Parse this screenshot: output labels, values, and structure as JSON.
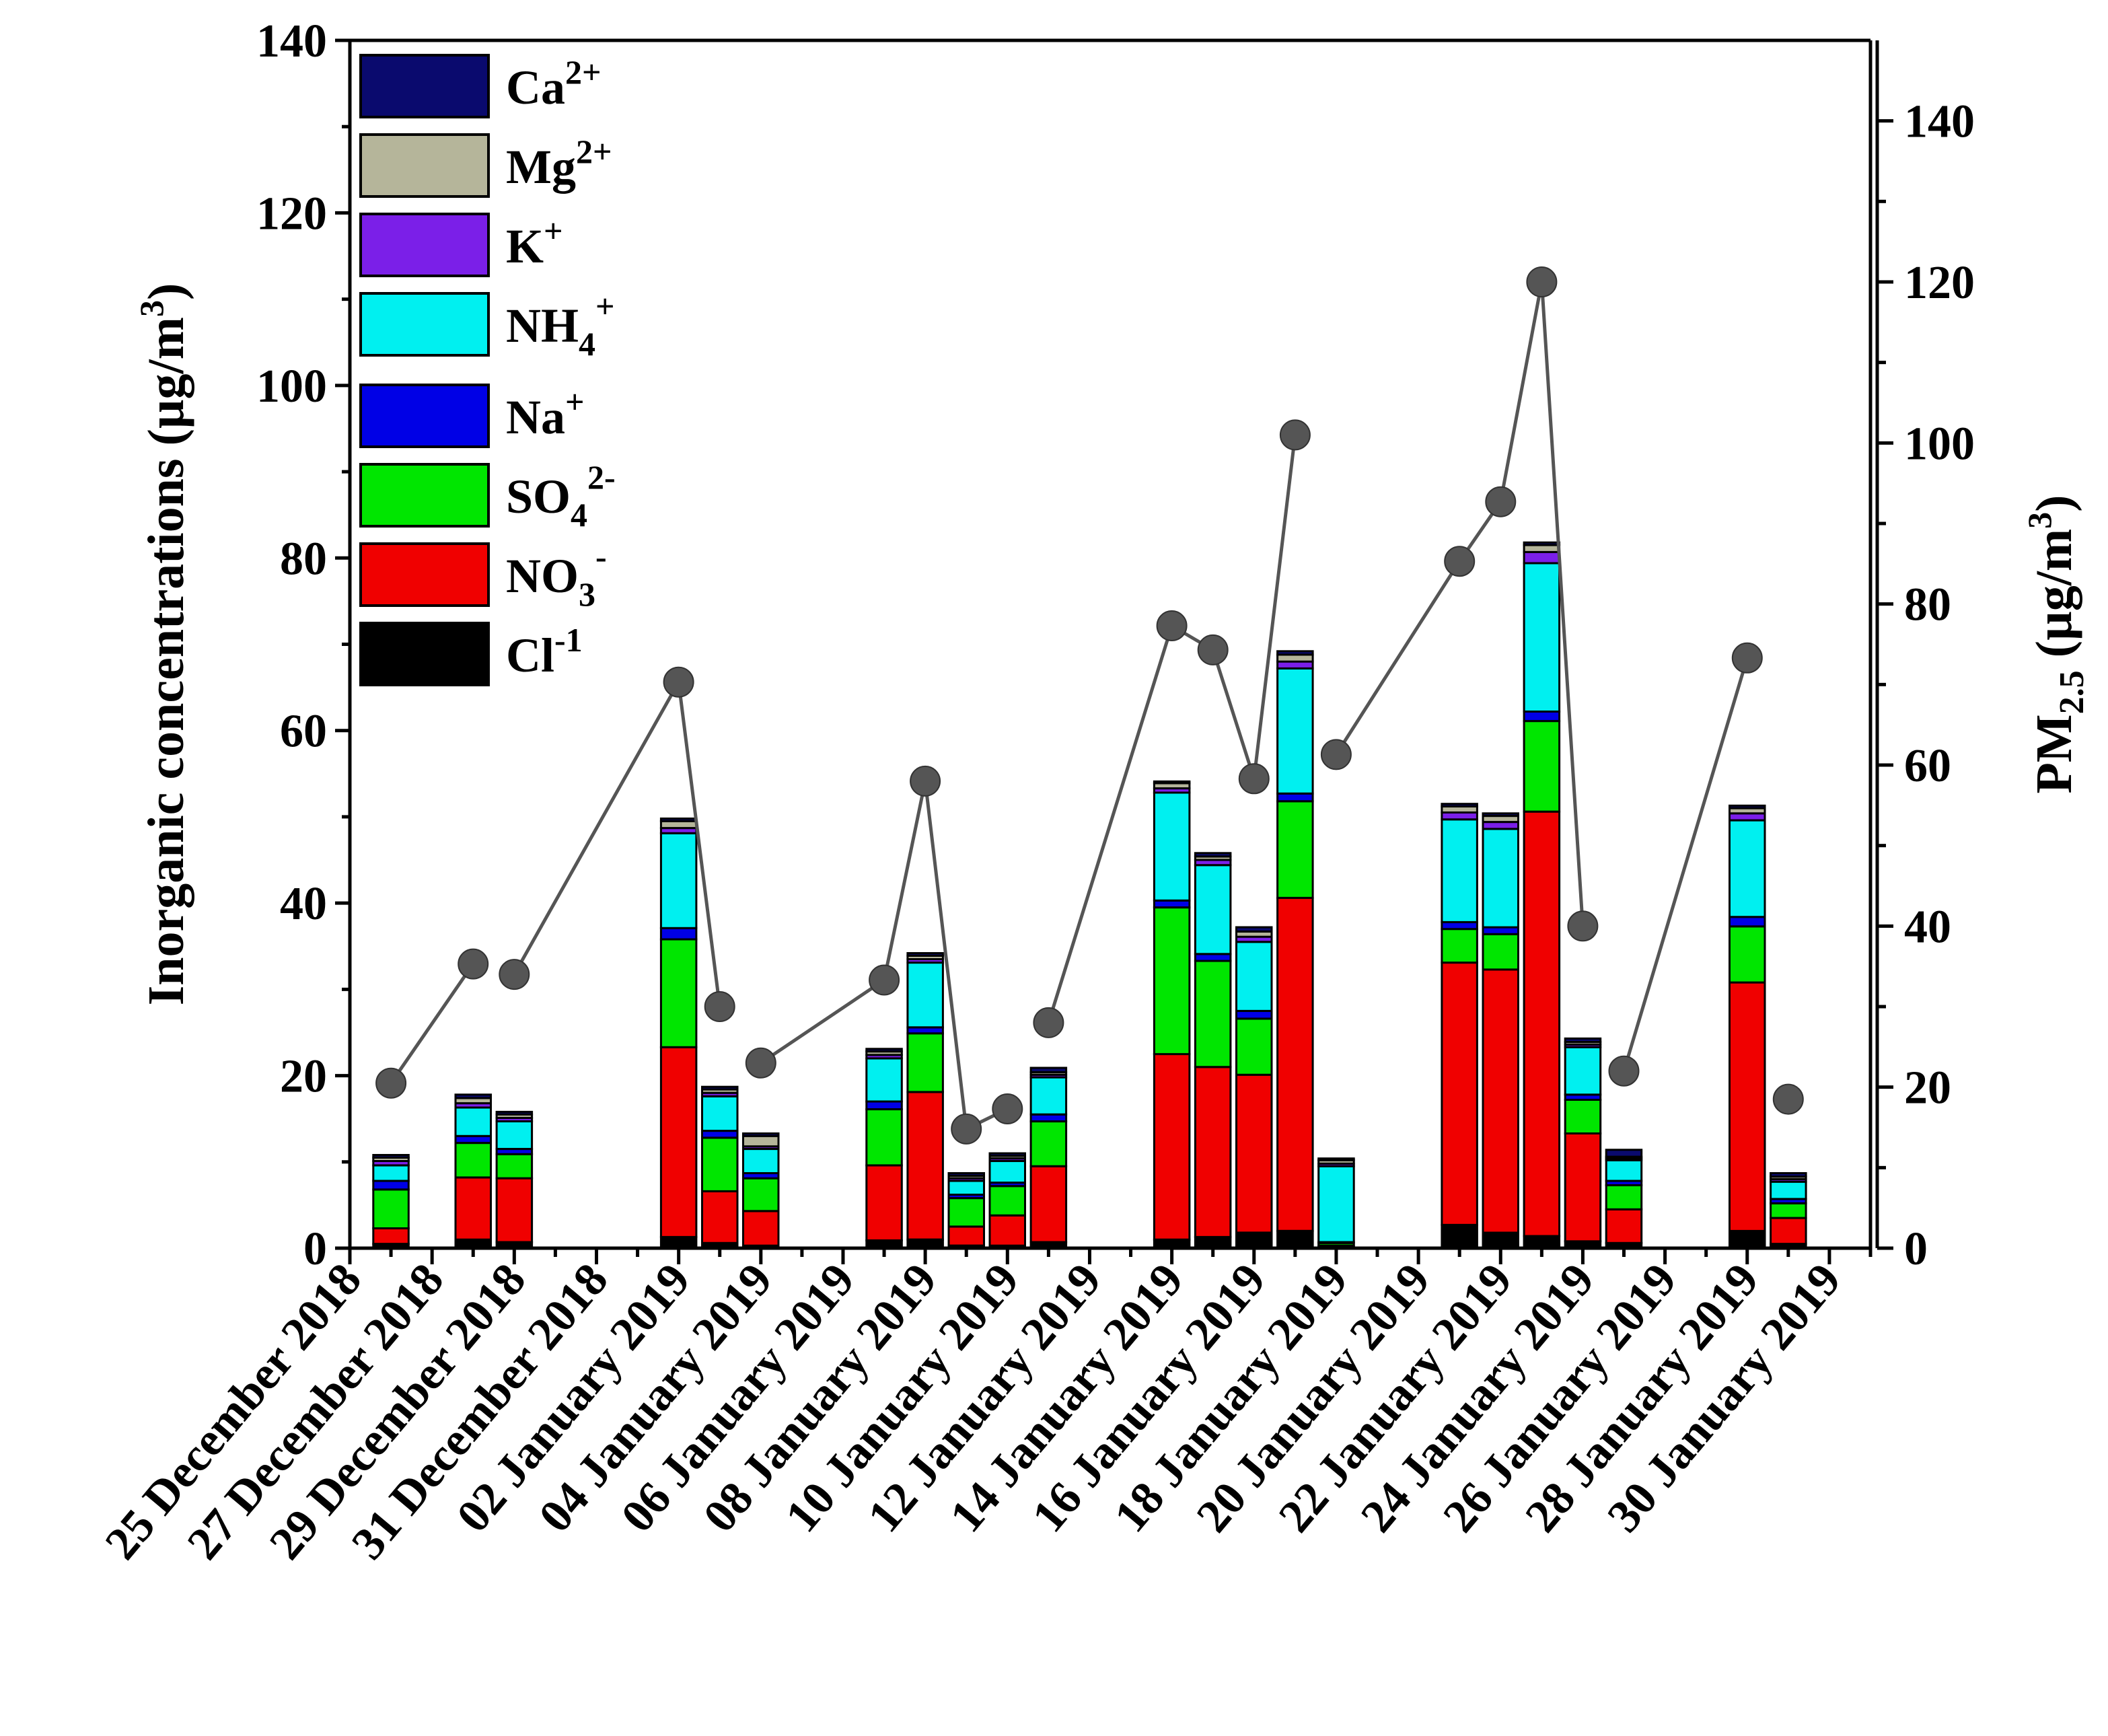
{
  "chart_data": {
    "type": "bar",
    "stacked": true,
    "left_axis": {
      "title": "Inorganic concentrations (µg/m",
      "title_sup": "3",
      "title_end": ")",
      "ylim": [
        0,
        140
      ],
      "ticks": [
        "0",
        "20",
        "40",
        "60",
        "80",
        "100",
        "120",
        "140"
      ]
    },
    "right_axis": {
      "title_main": "PM",
      "title_sub": "2.5",
      "title_unit": " (µg/m",
      "title_sup": "3",
      "title_end": ")",
      "ylim": [
        0,
        150
      ],
      "ticks": [
        "0",
        "20",
        "40",
        "60",
        "80",
        "100",
        "120",
        "140"
      ]
    },
    "x_axis": {
      "start_day": 0,
      "end_day": 37,
      "date_labels": [
        "25 December 2018",
        "27 December 2018",
        "29 December 2018",
        "31 December 2018",
        "02 January 2019",
        "04 January 2019",
        "06 January 2019",
        "08 January 2019",
        "10 January 2019",
        "12 January 2019",
        "14 January 2019",
        "16 January 2019",
        "18 January 2019",
        "20 January 2019",
        "22 January 2019",
        "24 January 2019",
        "26 January 2019",
        "28 January 2019",
        "30 January 2019"
      ]
    },
    "legend": [
      {
        "label": "Ca",
        "sup": "2+",
        "sub": "",
        "color": "#0a0a6e"
      },
      {
        "label": "Mg",
        "sup": "2+",
        "sub": "",
        "color": "#b5b59a"
      },
      {
        "label": "K",
        "sup": "+",
        "sub": "",
        "color": "#7b1fe8"
      },
      {
        "label": "NH",
        "sup": "+",
        "sub": "4",
        "color": "#00f0f0"
      },
      {
        "label": "Na",
        "sup": "+",
        "sub": "",
        "color": "#0000e6"
      },
      {
        "label": "SO",
        "sup": "2-",
        "sub": "4",
        "color": "#00e600"
      },
      {
        "label": "NO",
        "sup": "-",
        "sub": "3",
        "color": "#f00000"
      },
      {
        "label": "Cl",
        "sup": "-1",
        "sub": "",
        "color": "#000000"
      }
    ],
    "series_order": [
      "Cl-1",
      "NO3-",
      "SO42-",
      "Na+",
      "NH4+",
      "K+",
      "Mg2+",
      "Ca2+"
    ],
    "series_colors": [
      "#000000",
      "#f00000",
      "#00e600",
      "#0000e6",
      "#00f0f0",
      "#7b1fe8",
      "#b5b59a",
      "#0a0a6e"
    ],
    "samples": [
      {
        "day": 1,
        "values": [
          0.5,
          1.8,
          4.5,
          1.0,
          1.8,
          0.5,
          0.4,
          0.3
        ],
        "pm25": 20.5
      },
      {
        "day": 3,
        "values": [
          1.0,
          7.2,
          4.0,
          0.8,
          3.3,
          0.5,
          0.6,
          0.4
        ],
        "pm25": 35.3
      },
      {
        "day": 4,
        "values": [
          0.7,
          7.4,
          2.8,
          0.6,
          3.2,
          0.4,
          0.4,
          0.3
        ],
        "pm25": 34.0
      },
      {
        "day": 8,
        "values": [
          1.3,
          22.0,
          12.5,
          1.3,
          11.0,
          0.6,
          0.8,
          0.3
        ],
        "pm25": 70.3
      },
      {
        "day": 9,
        "values": [
          0.6,
          6.0,
          6.2,
          0.8,
          4.0,
          0.4,
          0.4,
          0.3
        ],
        "pm25": 30.0
      },
      {
        "day": 10,
        "values": [
          0.3,
          4.0,
          3.8,
          0.6,
          2.8,
          0.3,
          1.2,
          0.3
        ],
        "pm25": 23.0
      },
      {
        "day": 13,
        "values": [
          0.9,
          8.7,
          6.5,
          0.9,
          5.0,
          0.4,
          0.4,
          0.3
        ],
        "pm25": 33.3
      },
      {
        "day": 14,
        "values": [
          1.0,
          17.1,
          6.8,
          0.7,
          7.5,
          0.4,
          0.4,
          0.3
        ],
        "pm25": 58.0
      },
      {
        "day": 15,
        "values": [
          0.3,
          2.2,
          3.3,
          0.4,
          1.6,
          0.3,
          0.3,
          0.3
        ],
        "pm25": 14.8
      },
      {
        "day": 16,
        "values": [
          0.3,
          3.5,
          3.4,
          0.4,
          2.5,
          0.3,
          0.3,
          0.3
        ],
        "pm25": 17.3
      },
      {
        "day": 17,
        "values": [
          0.7,
          8.8,
          5.2,
          0.8,
          4.3,
          0.3,
          0.3,
          0.5
        ],
        "pm25": 28.0
      },
      {
        "day": 20,
        "values": [
          1.0,
          21.5,
          17.0,
          0.8,
          12.5,
          0.5,
          0.6,
          0.2
        ],
        "pm25": 77.3
      },
      {
        "day": 21,
        "values": [
          1.3,
          19.7,
          12.3,
          0.8,
          10.3,
          0.6,
          0.4,
          0.4
        ],
        "pm25": 74.3
      },
      {
        "day": 22,
        "values": [
          1.8,
          18.3,
          6.5,
          0.9,
          8.0,
          0.6,
          0.6,
          0.5
        ],
        "pm25": 58.3
      },
      {
        "day": 23,
        "values": [
          2.0,
          38.6,
          11.2,
          0.9,
          14.5,
          0.8,
          0.8,
          0.4
        ],
        "pm25": 101.0
      },
      {
        "day": 24,
        "values": [
          0.1,
          0.2,
          0.3,
          0.1,
          8.8,
          0.3,
          0.4,
          0.2
        ],
        "pm25": 61.3
      },
      {
        "day": 27,
        "values": [
          2.7,
          30.4,
          3.9,
          0.8,
          11.9,
          0.8,
          0.7,
          0.3
        ],
        "pm25": 85.3
      },
      {
        "day": 28,
        "values": [
          1.8,
          30.5,
          4.1,
          0.8,
          11.4,
          0.8,
          0.7,
          0.3
        ],
        "pm25": 92.7
      },
      {
        "day": 29,
        "values": [
          1.4,
          49.2,
          10.5,
          1.1,
          17.2,
          1.3,
          0.8,
          0.3
        ],
        "pm25": 120.0
      },
      {
        "day": 30,
        "values": [
          0.8,
          12.5,
          3.9,
          0.6,
          5.5,
          0.3,
          0.3,
          0.4
        ],
        "pm25": 40.0
      },
      {
        "day": 31,
        "values": [
          0.6,
          3.9,
          2.8,
          0.5,
          2.4,
          0.2,
          0.2,
          0.8
        ],
        "pm25": 22.0
      },
      {
        "day": 34,
        "values": [
          2.0,
          28.8,
          6.5,
          1.1,
          11.2,
          0.8,
          0.6,
          0.3
        ],
        "pm25": 73.3
      },
      {
        "day": 35,
        "values": [
          0.5,
          3.0,
          1.7,
          0.5,
          2.0,
          0.3,
          0.3,
          0.4
        ],
        "pm25": 18.5
      }
    ],
    "pm25_line_segments": [
      [
        1,
        2
      ],
      [
        3,
        4,
        5
      ],
      [
        6,
        7,
        8,
        9,
        10
      ],
      [
        11,
        12,
        13,
        14,
        15
      ],
      [
        16,
        17,
        18,
        19,
        20
      ],
      [
        21,
        22
      ]
    ]
  }
}
